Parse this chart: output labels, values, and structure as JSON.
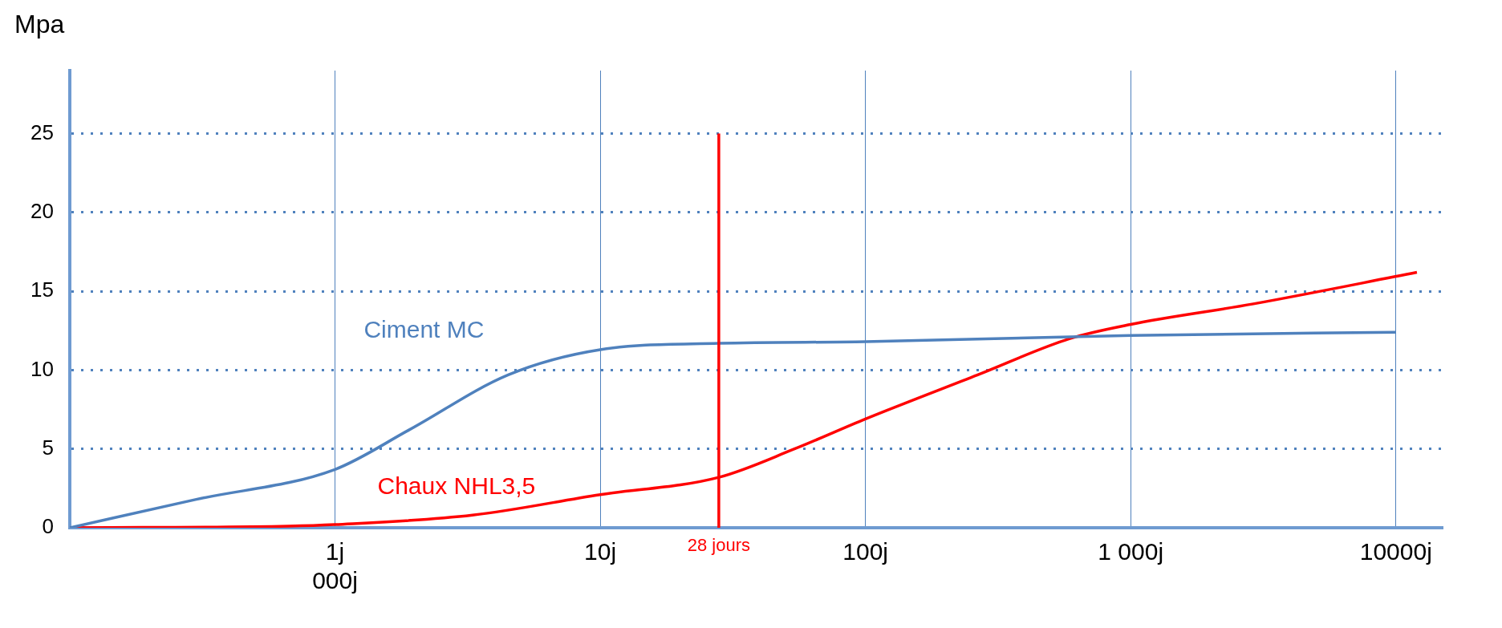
{
  "chart_data": {
    "type": "line",
    "ylabel": "Mpa",
    "log": "x",
    "xlim": [
      0.1,
      15000
    ],
    "xticks": [
      {
        "value": 1,
        "label": "1j\n000j"
      },
      {
        "value": 10,
        "label": "10j"
      },
      {
        "value": 100,
        "label": "100j"
      },
      {
        "value": 1000,
        "label": "1 000j"
      },
      {
        "value": 10000,
        "label": "10000j"
      }
    ],
    "ylim": [
      0,
      29
    ],
    "yticks": [
      0,
      5,
      10,
      15,
      20,
      25
    ],
    "grid": true,
    "legend": false,
    "marker": "none",
    "series": [
      {
        "name": "Ciment MC",
        "color": "#4f81bd",
        "x": [
          0.1,
          0.3,
          1,
          1.9,
          4.5,
          10,
          28,
          100,
          1000,
          10000
        ],
        "values": [
          0,
          1.8,
          3.7,
          6.2,
          9.7,
          11.3,
          11.7,
          11.8,
          12.2,
          12.4
        ]
      },
      {
        "name": "Chaux NHL3,5",
        "color": "#ff0000",
        "x": [
          0.1,
          0.67,
          1,
          3.3,
          10,
          28,
          54,
          100,
          265,
          590,
          1000,
          2900,
          12000
        ],
        "values": [
          0,
          0.1,
          0.2,
          0.8,
          2.1,
          3.2,
          5.0,
          6.9,
          9.7,
          12.0,
          12.9,
          14.2,
          16.2
        ]
      }
    ],
    "ref_lines": [
      {
        "axis": "x",
        "value": 28,
        "label": "28 jours",
        "color": "#ff0000"
      }
    ]
  }
}
